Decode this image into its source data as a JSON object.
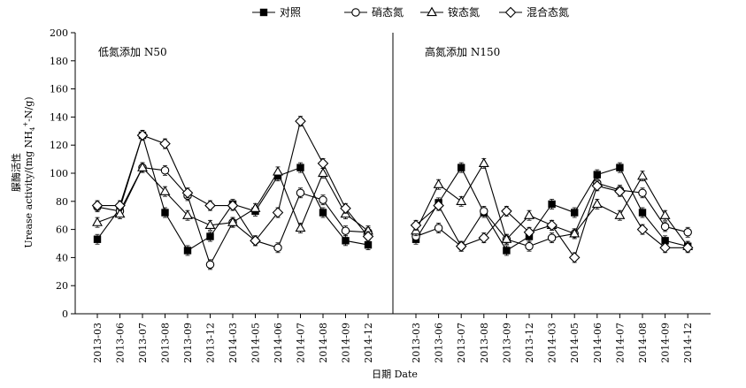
{
  "chart_data": {
    "type": "line",
    "legend": [
      "对照",
      "硝态氮",
      "铵态氮",
      "混合态氮"
    ],
    "legend_placement": "top-center",
    "ylabel_cn": "脲酶活性",
    "ylabel_en_prefix": "Urease activity/(mg NH",
    "ylabel_en_sub": "4",
    "ylabel_en_sup": "+",
    "ylabel_en_suffix": "-N/g)",
    "xlabel": "日期 Date",
    "ylim": [
      0,
      200
    ],
    "y_ticks": [
      "0",
      "20",
      "40",
      "60",
      "80",
      "100",
      "120",
      "140",
      "160",
      "180",
      "200"
    ],
    "categories": [
      "2013-03",
      "2013-06",
      "2013-07",
      "2013-08",
      "2013-09",
      "2013-12",
      "2014-03",
      "2014-05",
      "2014-06",
      "2014-07",
      "2014-08",
      "2014-09",
      "2014-12"
    ],
    "grid": false,
    "panels": [
      {
        "title": "低氮添加 N50",
        "series": [
          {
            "name": "对照",
            "marker": "filled-square",
            "values": [
              53,
              75,
              127,
              72,
              45,
              55,
              78,
              73,
              98,
              104,
              72,
              52,
              49
            ]
          },
          {
            "name": "硝态氮",
            "marker": "open-circle",
            "values": [
              76,
              73,
              104,
              102,
              84,
              35,
              65,
              52,
              47,
              86,
              81,
              59,
              58
            ]
          },
          {
            "name": "铵态氮",
            "marker": "open-triangle",
            "values": [
              65,
              71,
              104,
              87,
              70,
              63,
              65,
              75,
              101,
              61,
              100,
              71,
              59
            ]
          },
          {
            "name": "混合态氮",
            "marker": "open-diamond",
            "values": [
              77,
              77,
              127,
              121,
              86,
              77,
              77,
              52,
              72,
              137,
              107,
              75,
              55
            ]
          }
        ]
      },
      {
        "title": "高氮添加 N150",
        "series": [
          {
            "name": "对照",
            "marker": "filled-square",
            "values": [
              53,
              79,
              104,
              72,
              45,
              55,
              78,
              72,
              99,
              104,
              72,
              52,
              48
            ]
          },
          {
            "name": "硝态氮",
            "marker": "open-circle",
            "values": [
              55,
              61,
              48,
              73,
              53,
              48,
              54,
              57,
              93,
              88,
              86,
              62,
              58
            ]
          },
          {
            "name": "铵态氮",
            "marker": "open-triangle",
            "values": [
              59,
              92,
              80,
              107,
              53,
              70,
              63,
              57,
              78,
              70,
              98,
              70,
              48
            ]
          },
          {
            "name": "混合态氮",
            "marker": "open-diamond",
            "values": [
              63,
              77,
              48,
              54,
              73,
              58,
              63,
              40,
              91,
              87,
              60,
              47,
              47
            ]
          }
        ]
      }
    ]
  }
}
